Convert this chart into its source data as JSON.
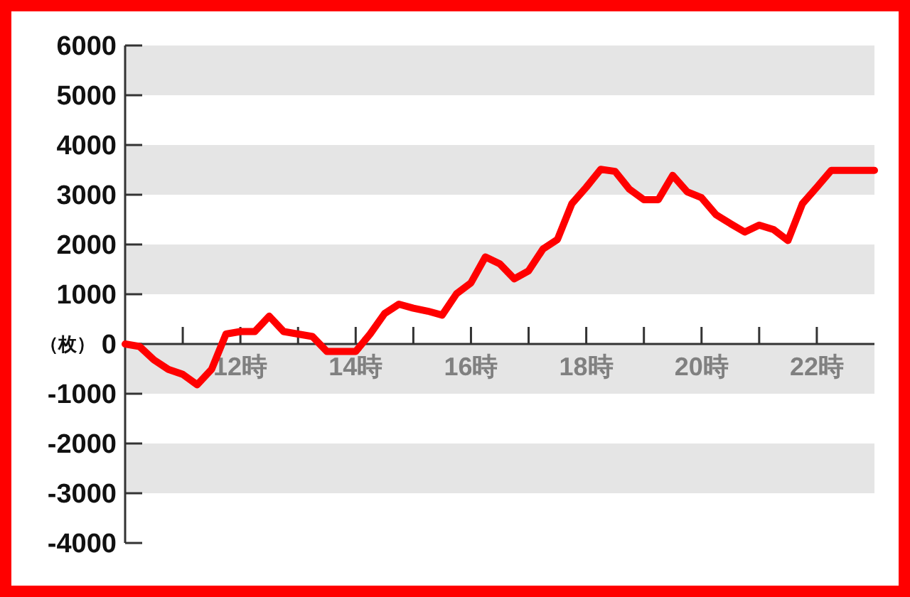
{
  "chart_data": {
    "type": "line",
    "ylabel": "（枚）",
    "x": [
      10,
      10.25,
      10.5,
      10.75,
      11,
      11.25,
      11.5,
      11.75,
      12,
      12.25,
      12.5,
      12.75,
      13,
      13.25,
      13.5,
      13.75,
      14,
      14.25,
      14.5,
      14.75,
      15,
      15.25,
      15.5,
      15.75,
      16,
      16.25,
      16.5,
      16.75,
      17,
      17.25,
      17.5,
      17.75,
      18,
      18.25,
      18.5,
      18.75,
      19,
      19.25,
      19.5,
      19.75,
      20,
      20.25,
      20.5,
      20.75,
      21,
      21.25,
      21.5,
      21.75,
      22,
      22.25,
      22.5,
      22.75,
      23
    ],
    "series": [
      {
        "color": "#ff0000",
        "values": [
          0,
          -50,
          -320,
          -510,
          -610,
          -820,
          -510,
          200,
          250,
          250,
          560,
          250,
          200,
          150,
          -150,
          -150,
          -150,
          200,
          610,
          800,
          720,
          660,
          580,
          1010,
          1230,
          1750,
          1610,
          1310,
          1470,
          1910,
          2100,
          2820,
          3150,
          3510,
          3470,
          3110,
          2900,
          2900,
          3390,
          3060,
          2940,
          2600,
          2420,
          2250,
          2390,
          2300,
          2080,
          2820,
          3150,
          3490,
          3490,
          3490,
          3490
        ]
      }
    ],
    "xlim": [
      10,
      23
    ],
    "xticks": [
      {
        "value": 11,
        "label": null
      },
      {
        "value": 12,
        "label": "12時"
      },
      {
        "value": 13,
        "label": null
      },
      {
        "value": 14,
        "label": "14時"
      },
      {
        "value": 15,
        "label": null
      },
      {
        "value": 16,
        "label": "16時"
      },
      {
        "value": 17,
        "label": null
      },
      {
        "value": 18,
        "label": "18時"
      },
      {
        "value": 19,
        "label": null
      },
      {
        "value": 20,
        "label": "20時"
      },
      {
        "value": 21,
        "label": null
      },
      {
        "value": 22,
        "label": "22時"
      }
    ],
    "ylim": [
      -4000,
      6000
    ],
    "yticks": [
      -4000,
      -3000,
      -2000,
      -1000,
      0,
      1000,
      2000,
      3000,
      4000,
      5000,
      6000
    ],
    "line_style": "solid"
  }
}
